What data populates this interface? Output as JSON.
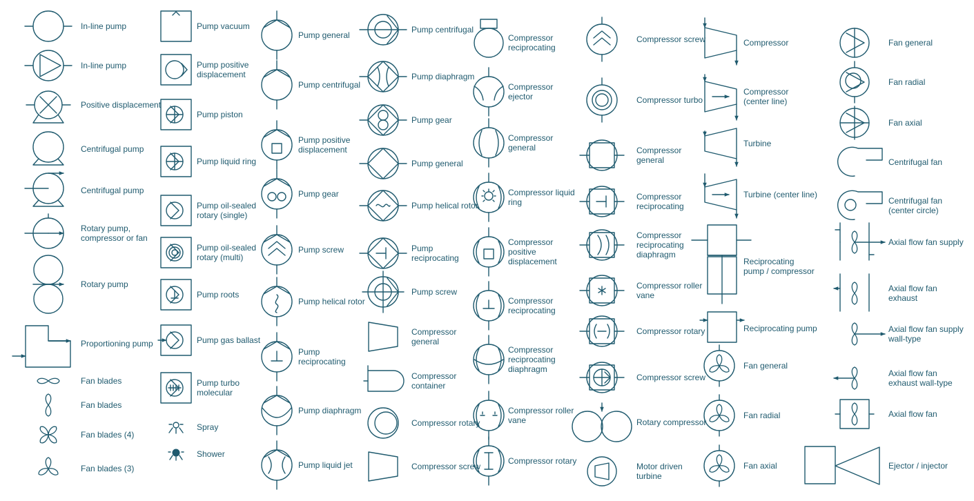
{
  "columns": [
    {
      "items": [
        {
          "icon": "inline-pump-icon",
          "label": "In-line pump"
        },
        {
          "icon": "inline-pump-arrow-icon",
          "label": "In-line pump"
        },
        {
          "icon": "positive-displacement-icon",
          "label": "Positive displacement"
        },
        {
          "icon": "centrifugal-pump-icon",
          "label": "Centrifugal pump"
        },
        {
          "icon": "centrifugal-pump-outlet-icon",
          "label": "Centrifugal pump"
        },
        {
          "icon": "rotary-pump-compressor-fan-icon",
          "label": "Rotary pump,\ncompressor or fan"
        },
        {
          "icon": "rotary-pump-icon",
          "label": "Rotary pump"
        },
        {
          "icon": "proportioning-pump-icon",
          "label": "Proportioning pump"
        },
        {
          "icon": "fan-blades-2-icon",
          "label": "Fan blades"
        },
        {
          "icon": "fan-blades-vertical-icon",
          "label": "Fan blades"
        },
        {
          "icon": "fan-blades-4-icon",
          "label": "Fan blades (4)"
        },
        {
          "icon": "fan-blades-3-icon",
          "label": "Fan blades (3)"
        }
      ]
    },
    {
      "items": [
        {
          "icon": "pump-vacuum-icon",
          "label": "Pump vacuum"
        },
        {
          "icon": "pump-positive-displacement-box-icon",
          "label": "Pump positive\ndisplacement"
        },
        {
          "icon": "pump-piston-icon",
          "label": "Pump piston"
        },
        {
          "icon": "pump-liquid-ring-icon",
          "label": "Pump liquid ring"
        },
        {
          "icon": "pump-oil-sealed-single-icon",
          "label": "Pump oil-sealed\nrotary (single)"
        },
        {
          "icon": "pump-oil-sealed-multi-icon",
          "label": "Pump oil-sealed\nrotary (multi)"
        },
        {
          "icon": "pump-roots-icon",
          "label": "Pump roots"
        },
        {
          "icon": "pump-gas-ballast-icon",
          "label": "Pump gas ballast"
        },
        {
          "icon": "pump-turbo-molecular-icon",
          "label": "Pump turbo\nmolecular"
        },
        {
          "icon": "spray-icon",
          "label": "Spray"
        },
        {
          "icon": "shower-icon",
          "label": "Shower"
        }
      ]
    },
    {
      "items": [
        {
          "icon": "pump-general-circle-icon",
          "label": "Pump general"
        },
        {
          "icon": "pump-centrifugal-circle-icon",
          "label": "Pump centrifugal"
        },
        {
          "icon": "pump-positive-displacement-circle-icon",
          "label": "Pump positive\ndisplacement"
        },
        {
          "icon": "pump-gear-circle-icon",
          "label": "Pump gear"
        },
        {
          "icon": "pump-screw-circle-icon",
          "label": "Pump screw"
        },
        {
          "icon": "pump-helical-rotor-circle-icon",
          "label": "Pump helical rotor"
        },
        {
          "icon": "pump-reciprocating-circle-icon",
          "label": "Pump\nreciprocating"
        },
        {
          "icon": "pump-diaphragm-circle-icon",
          "label": "Pump diaphragm"
        },
        {
          "icon": "pump-liquid-jet-icon",
          "label": "Pump liquid jet"
        }
      ]
    },
    {
      "items": [
        {
          "icon": "pump-centrifugal-diamond-icon",
          "label": "Pump centrifugal"
        },
        {
          "icon": "pump-diaphragm-diamond-icon",
          "label": "Pump diaphragm"
        },
        {
          "icon": "pump-gear-diamond-icon",
          "label": "Pump gear"
        },
        {
          "icon": "pump-general-diamond-icon",
          "label": "Pump general"
        },
        {
          "icon": "pump-helical-rotor-diamond-icon",
          "label": "Pump helical rotor"
        },
        {
          "icon": "pump-reciprocating-diamond-icon",
          "label": "Pump\nreciprocating"
        },
        {
          "icon": "pump-screw-diamond-icon",
          "label": "Pump screw"
        },
        {
          "icon": "compressor-general-trapezoid-icon",
          "label": "Compressor\ngeneral"
        },
        {
          "icon": "compressor-container-icon",
          "label": "Compressor\ncontainer"
        },
        {
          "icon": "compressor-rotary-icon",
          "label": "Compressor rotary"
        },
        {
          "icon": "compressor-screw-trapezoid-icon",
          "label": "Compressor screw"
        }
      ]
    },
    {
      "items": [
        {
          "icon": "compressor-reciprocating-tank-icon",
          "label": "Compressor\nreciprocating"
        },
        {
          "icon": "compressor-ejector-icon",
          "label": "Compressor\nejector"
        },
        {
          "icon": "compressor-general-circle-icon",
          "label": "Compressor\ngeneral"
        },
        {
          "icon": "compressor-liquid-ring-icon",
          "label": "Compressor liquid\nring"
        },
        {
          "icon": "compressor-positive-displacement-icon",
          "label": "Compressor\npositive\ndisplacement"
        },
        {
          "icon": "compressor-reciprocating-circle-icon",
          "label": "Compressor\nreciprocating"
        },
        {
          "icon": "compressor-reciprocating-diaphragm-icon",
          "label": "Compressor\nreciprocating\ndiaphragm"
        },
        {
          "icon": "compressor-roller-vane-icon",
          "label": "Compressor roller\nvane"
        },
        {
          "icon": "compressor-rotary-circle-icon",
          "label": "Compressor rotary"
        }
      ]
    },
    {
      "items": [
        {
          "icon": "compressor-screw-circle-icon",
          "label": "Compressor screw"
        },
        {
          "icon": "compressor-turbo-icon",
          "label": "Compressor turbo"
        },
        {
          "icon": "compressor-general-box-icon",
          "label": "Compressor\ngeneral"
        },
        {
          "icon": "compressor-reciprocating-box-icon",
          "label": "Compressor\nreciprocating"
        },
        {
          "icon": "compressor-reciprocating-diaphragm-box-icon",
          "label": "Compressor\nreciprocating\ndiaphragm"
        },
        {
          "icon": "compressor-roller-vane-box-icon",
          "label": "Compressor roller\nvane"
        },
        {
          "icon": "compressor-rotary-box-icon",
          "label": "Compressor rotary"
        },
        {
          "icon": "compressor-screw-box-icon",
          "label": "Compressor screw"
        },
        {
          "icon": "rotary-compressor-icon",
          "label": "Rotary compressor"
        },
        {
          "icon": "motor-driven-turbine-icon",
          "label": "Motor driven\nturbine"
        }
      ]
    },
    {
      "items": [
        {
          "icon": "compressor-icon",
          "label": "Compressor"
        },
        {
          "icon": "compressor-center-line-icon",
          "label": "Compressor\n(center line)"
        },
        {
          "icon": "turbine-icon",
          "label": "Turbine"
        },
        {
          "icon": "turbine-center-line-icon",
          "label": "Turbine (center line)"
        },
        {
          "icon": "reciprocating-pump-compressor-icon",
          "label": "Reciprocating\npump / compressor"
        },
        {
          "icon": "reciprocating-pump-icon",
          "label": "Reciprocating pump"
        },
        {
          "icon": "fan-general-circle-icon",
          "label": "Fan general"
        },
        {
          "icon": "fan-radial-circle-icon",
          "label": "Fan radial"
        },
        {
          "icon": "fan-axial-circle-icon",
          "label": "Fan axial"
        }
      ]
    },
    {
      "items": [
        {
          "icon": "fan-general-icon",
          "label": "Fan general"
        },
        {
          "icon": "fan-radial-icon",
          "label": "Fan radial"
        },
        {
          "icon": "fan-axial-icon",
          "label": "Fan axial"
        },
        {
          "icon": "centrifugal-fan-icon",
          "label": "Centrifugal fan"
        },
        {
          "icon": "centrifugal-fan-center-circle-icon",
          "label": "Centrifugal fan\n(center circle)"
        },
        {
          "icon": "axial-flow-fan-supply-icon",
          "label": "Axial flow fan supply"
        },
        {
          "icon": "axial-flow-fan-exhaust-icon",
          "label": "Axial flow fan\nexhaust"
        },
        {
          "icon": "axial-flow-fan-supply-wall-icon",
          "label": "Axial flow fan supply\nwall-type"
        },
        {
          "icon": "axial-flow-fan-exhaust-wall-icon",
          "label": "Axial flow fan\nexhaust wall-type"
        },
        {
          "icon": "axial-flow-fan-icon",
          "label": "Axial flow fan"
        },
        {
          "icon": "ejector-injector-icon",
          "label": "Ejector / injector"
        }
      ]
    }
  ]
}
